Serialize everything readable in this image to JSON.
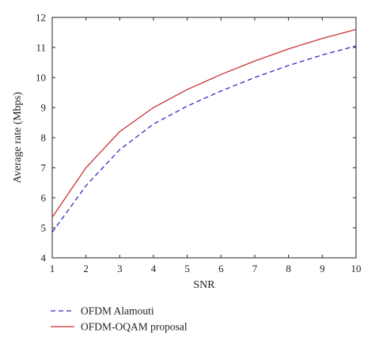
{
  "chart_data": {
    "type": "line",
    "xlabel": "SNR",
    "ylabel": "Average rate (Mbps)",
    "x": [
      1,
      2,
      3,
      4,
      5,
      6,
      7,
      8,
      9,
      10
    ],
    "xlim": [
      1,
      10
    ],
    "ylim": [
      4,
      12
    ],
    "xticks": [
      1,
      2,
      3,
      4,
      5,
      6,
      7,
      8,
      9,
      10
    ],
    "yticks": [
      4,
      5,
      6,
      7,
      8,
      9,
      10,
      11,
      12
    ],
    "grid": false,
    "legend_position": "bottom-left-outside",
    "series": [
      {
        "name": "OFDM Alamouti",
        "color": "#2b2bc8",
        "style": "dashed",
        "values": [
          4.85,
          6.4,
          7.6,
          8.45,
          9.05,
          9.55,
          10.0,
          10.4,
          10.75,
          11.05
        ]
      },
      {
        "name": "OFDM-OQAM proposal",
        "color": "#c83232",
        "style": "solid",
        "values": [
          5.35,
          7.0,
          8.2,
          9.0,
          9.6,
          10.1,
          10.55,
          10.95,
          11.3,
          11.6
        ]
      }
    ]
  }
}
